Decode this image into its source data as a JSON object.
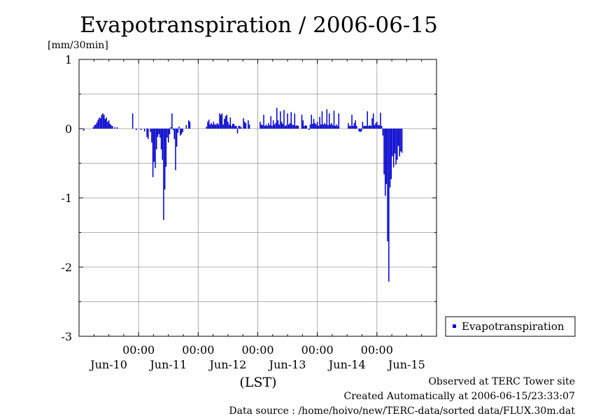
{
  "chart_data": {
    "type": "bar",
    "title": "Evapotranspiration / 2006-06-15",
    "ylabel": "[mm/30min]",
    "xlabel": "(LST)",
    "ylim": [
      -3,
      1
    ],
    "y_ticks": [
      "1",
      "0",
      "-1",
      "-2",
      "-3"
    ],
    "x_time_labels": [
      "00:00",
      "00:00",
      "00:00",
      "00:00",
      "00:00"
    ],
    "x_date_labels": [
      "Jun-10",
      "Jun-11",
      "Jun-12",
      "Jun-13",
      "Jun-14",
      "Jun-15"
    ],
    "x_unit": "days since 2006-06-09 12:00 (LST)",
    "grid": true,
    "legend_position": "right",
    "color": "#0000cc",
    "series": [
      {
        "name": "Evapotranspiration",
        "points": [
          [
            0.08,
            -0.03
          ],
          [
            0.24,
            0.02
          ],
          [
            0.26,
            0.05
          ],
          [
            0.28,
            0.06
          ],
          [
            0.3,
            0.09
          ],
          [
            0.32,
            0.13
          ],
          [
            0.34,
            0.16
          ],
          [
            0.36,
            0.15
          ],
          [
            0.38,
            0.2
          ],
          [
            0.4,
            0.22
          ],
          [
            0.42,
            0.2
          ],
          [
            0.44,
            0.14
          ],
          [
            0.46,
            0.16
          ],
          [
            0.48,
            0.1
          ],
          [
            0.5,
            0.12
          ],
          [
            0.52,
            0.07
          ],
          [
            0.54,
            0.05
          ],
          [
            0.56,
            0.04
          ],
          [
            0.6,
            0.02
          ],
          [
            0.64,
            0.02
          ],
          [
            0.9,
            0.22
          ],
          [
            0.96,
            -0.02
          ],
          [
            1.04,
            -0.02
          ],
          [
            1.1,
            -0.04
          ],
          [
            1.14,
            -0.12
          ],
          [
            1.16,
            -0.15
          ],
          [
            1.2,
            -0.05
          ],
          [
            1.22,
            -0.2
          ],
          [
            1.24,
            -0.7
          ],
          [
            1.26,
            -0.48
          ],
          [
            1.28,
            -0.57
          ],
          [
            1.3,
            -0.3
          ],
          [
            1.32,
            -0.12
          ],
          [
            1.34,
            -0.08
          ],
          [
            1.36,
            -0.13
          ],
          [
            1.38,
            -0.3
          ],
          [
            1.4,
            -0.45
          ],
          [
            1.42,
            -1.32
          ],
          [
            1.44,
            -0.88
          ],
          [
            1.46,
            -0.55
          ],
          [
            1.48,
            -0.13
          ],
          [
            1.5,
            -0.2
          ],
          [
            1.52,
            -0.08
          ],
          [
            1.54,
            0.02
          ],
          [
            1.56,
            0.22
          ],
          [
            1.58,
            -0.02
          ],
          [
            1.6,
            -0.15
          ],
          [
            1.62,
            -0.6
          ],
          [
            1.64,
            -0.26
          ],
          [
            1.66,
            -0.06
          ],
          [
            1.68,
            0.03
          ],
          [
            1.7,
            -0.1
          ],
          [
            1.72,
            -0.08
          ],
          [
            1.74,
            -0.05
          ],
          [
            1.8,
            0.05
          ],
          [
            1.84,
            0.12
          ],
          [
            1.86,
            0.1
          ],
          [
            2.14,
            0.03
          ],
          [
            2.16,
            0.1
          ],
          [
            2.18,
            0.13
          ],
          [
            2.2,
            0.06
          ],
          [
            2.22,
            0.08
          ],
          [
            2.24,
            0.06
          ],
          [
            2.26,
            0.1
          ],
          [
            2.28,
            0.06
          ],
          [
            2.3,
            0.06
          ],
          [
            2.32,
            0.08
          ],
          [
            2.34,
            0.06
          ],
          [
            2.36,
            0.22
          ],
          [
            2.38,
            0.2
          ],
          [
            2.4,
            0.22
          ],
          [
            2.42,
            0.06
          ],
          [
            2.44,
            0.14
          ],
          [
            2.46,
            0.18
          ],
          [
            2.48,
            0.2
          ],
          [
            2.5,
            0.1
          ],
          [
            2.52,
            0.06
          ],
          [
            2.54,
            0.16
          ],
          [
            2.56,
            0.04
          ],
          [
            2.58,
            0.07
          ],
          [
            2.6,
            0.07
          ],
          [
            2.62,
            0.04
          ],
          [
            2.64,
            0.04
          ],
          [
            2.66,
            -0.07
          ],
          [
            2.68,
            0.04
          ],
          [
            2.7,
            0.04
          ],
          [
            2.72,
            0.02
          ],
          [
            2.76,
            0.15
          ],
          [
            2.78,
            0.1
          ],
          [
            2.8,
            0.08
          ],
          [
            2.84,
            0.12
          ],
          [
            2.86,
            0.06
          ],
          [
            3.04,
            0.1
          ],
          [
            3.06,
            0.06
          ],
          [
            3.08,
            0.05
          ],
          [
            3.1,
            0.2
          ],
          [
            3.12,
            0.04
          ],
          [
            3.14,
            0.06
          ],
          [
            3.16,
            0.04
          ],
          [
            3.18,
            0.08
          ],
          [
            3.2,
            0.05
          ],
          [
            3.22,
            0.18
          ],
          [
            3.24,
            0.04
          ],
          [
            3.26,
            0.12
          ],
          [
            3.28,
            0.06
          ],
          [
            3.3,
            0.08
          ],
          [
            3.32,
            0.3
          ],
          [
            3.34,
            0.12
          ],
          [
            3.36,
            0.06
          ],
          [
            3.38,
            0.25
          ],
          [
            3.4,
            0.1
          ],
          [
            3.42,
            0.07
          ],
          [
            3.44,
            0.27
          ],
          [
            3.46,
            0.04
          ],
          [
            3.48,
            0.05
          ],
          [
            3.5,
            0.22
          ],
          [
            3.52,
            0.06
          ],
          [
            3.54,
            0.08
          ],
          [
            3.56,
            0.24
          ],
          [
            3.58,
            0.06
          ],
          [
            3.6,
            0.05
          ],
          [
            3.62,
            0.22
          ],
          [
            3.64,
            0.04
          ],
          [
            3.66,
            0.05
          ],
          [
            3.68,
            0.04
          ],
          [
            3.74,
            0.2
          ],
          [
            3.76,
            0.12
          ],
          [
            3.78,
            0.04
          ],
          [
            3.8,
            0.05
          ],
          [
            3.82,
            0.04
          ],
          [
            3.86,
            -0.02
          ],
          [
            3.88,
            0.06
          ],
          [
            3.9,
            0.2
          ],
          [
            3.92,
            0.07
          ],
          [
            3.94,
            0.14
          ],
          [
            3.96,
            0.08
          ],
          [
            3.98,
            0.06
          ],
          [
            4.0,
            0.1
          ],
          [
            4.02,
            0.04
          ],
          [
            4.04,
            0.17
          ],
          [
            4.06,
            0.06
          ],
          [
            4.08,
            0.25
          ],
          [
            4.1,
            0.06
          ],
          [
            4.12,
            0.08
          ],
          [
            4.14,
            0.06
          ],
          [
            4.16,
            0.28
          ],
          [
            4.18,
            0.05
          ],
          [
            4.2,
            0.22
          ],
          [
            4.22,
            0.06
          ],
          [
            4.24,
            0.08
          ],
          [
            4.26,
            0.05
          ],
          [
            4.28,
            0.26
          ],
          [
            4.3,
            0.04
          ],
          [
            4.32,
            0.06
          ],
          [
            4.34,
            0.04
          ],
          [
            4.36,
            0.22
          ],
          [
            4.52,
            0.08
          ],
          [
            4.54,
            0.04
          ],
          [
            4.56,
            0.04
          ],
          [
            4.58,
            0.2
          ],
          [
            4.6,
            0.04
          ],
          [
            4.62,
            0.08
          ],
          [
            4.64,
            0.12
          ],
          [
            4.66,
            0.04
          ],
          [
            4.7,
            -0.04
          ],
          [
            4.72,
            -0.05
          ],
          [
            4.74,
            -0.04
          ],
          [
            4.76,
            0.1
          ],
          [
            4.78,
            0.04
          ],
          [
            4.8,
            0.04
          ],
          [
            4.82,
            0.04
          ],
          [
            4.84,
            0.25
          ],
          [
            4.86,
            0.04
          ],
          [
            4.88,
            0.05
          ],
          [
            4.9,
            0.04
          ],
          [
            4.92,
            0.15
          ],
          [
            4.94,
            0.22
          ],
          [
            4.96,
            0.05
          ],
          [
            4.98,
            0.08
          ],
          [
            5.0,
            0.1
          ],
          [
            5.02,
            0.05
          ],
          [
            5.04,
            0.05
          ],
          [
            5.06,
            0.23
          ],
          [
            5.08,
            0.04
          ],
          [
            5.1,
            -0.1
          ],
          [
            5.12,
            -0.66
          ],
          [
            5.14,
            -0.97
          ],
          [
            5.16,
            -0.8
          ],
          [
            5.18,
            -1.63
          ],
          [
            5.2,
            -2.21
          ],
          [
            5.22,
            -0.85
          ],
          [
            5.24,
            -0.73
          ],
          [
            5.26,
            -0.4
          ],
          [
            5.28,
            -0.56
          ],
          [
            5.3,
            -0.36
          ],
          [
            5.32,
            -0.52
          ],
          [
            5.34,
            -0.45
          ],
          [
            5.36,
            -0.25
          ],
          [
            5.38,
            -0.4
          ],
          [
            5.4,
            -0.33
          ],
          [
            5.42,
            -0.35
          ]
        ]
      }
    ]
  },
  "legend": {
    "items": [
      {
        "label": "Evapotranspiration",
        "color": "#0000cc"
      }
    ]
  },
  "footer": {
    "line1": "Observed at TERC Tower site",
    "line2": "Created Automatically at 2006-06-15/23:33:07",
    "line3": "Data source : /home/hoivo/new/TERC-data/sorted  data/FLUX.30m.dat"
  }
}
